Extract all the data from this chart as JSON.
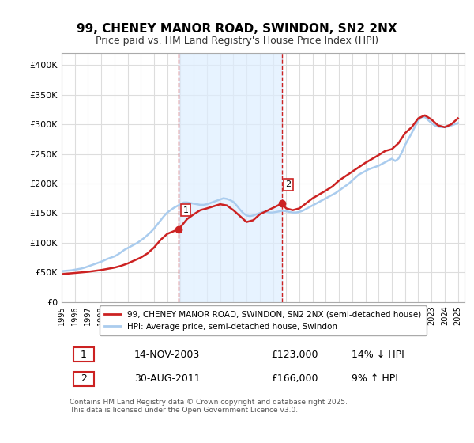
{
  "title": "99, CHENEY MANOR ROAD, SWINDON, SN2 2NX",
  "subtitle": "Price paid vs. HM Land Registry's House Price Index (HPI)",
  "ylabel_ticks": [
    "£0",
    "£50K",
    "£100K",
    "£150K",
    "£200K",
    "£250K",
    "£300K",
    "£350K",
    "£400K"
  ],
  "ytick_values": [
    0,
    50000,
    100000,
    150000,
    200000,
    250000,
    300000,
    350000,
    400000
  ],
  "ylim": [
    0,
    420000
  ],
  "xlim_start": 1995.0,
  "xlim_end": 2025.5,
  "background_color": "#ffffff",
  "plot_bg_color": "#ffffff",
  "grid_color": "#dddddd",
  "hpi_color": "#aaccee",
  "price_color": "#cc2222",
  "vline_color": "#cc2222",
  "shade_color": "#ddeeff",
  "sale1_x": 2003.87,
  "sale1_y": 123000,
  "sale2_x": 2011.66,
  "sale2_y": 166000,
  "legend_label1": "99, CHENEY MANOR ROAD, SWINDON, SN2 2NX (semi-detached house)",
  "legend_label2": "HPI: Average price, semi-detached house, Swindon",
  "annotation1_label": "1",
  "annotation2_label": "2",
  "table_row1": [
    "1",
    "14-NOV-2003",
    "£123,000",
    "14% ↓ HPI"
  ],
  "table_row2": [
    "2",
    "30-AUG-2011",
    "£166,000",
    "9% ↑ HPI"
  ],
  "footer": "Contains HM Land Registry data © Crown copyright and database right 2025.\nThis data is licensed under the Open Government Licence v3.0.",
  "hpi_data_x": [
    1995.0,
    1995.25,
    1995.5,
    1995.75,
    1996.0,
    1996.25,
    1996.5,
    1996.75,
    1997.0,
    1997.25,
    1997.5,
    1997.75,
    1998.0,
    1998.25,
    1998.5,
    1998.75,
    1999.0,
    1999.25,
    1999.5,
    1999.75,
    2000.0,
    2000.25,
    2000.5,
    2000.75,
    2001.0,
    2001.25,
    2001.5,
    2001.75,
    2002.0,
    2002.25,
    2002.5,
    2002.75,
    2003.0,
    2003.25,
    2003.5,
    2003.75,
    2004.0,
    2004.25,
    2004.5,
    2004.75,
    2005.0,
    2005.25,
    2005.5,
    2005.75,
    2006.0,
    2006.25,
    2006.5,
    2006.75,
    2007.0,
    2007.25,
    2007.5,
    2007.75,
    2008.0,
    2008.25,
    2008.5,
    2008.75,
    2009.0,
    2009.25,
    2009.5,
    2009.75,
    2010.0,
    2010.25,
    2010.5,
    2010.75,
    2011.0,
    2011.25,
    2011.5,
    2011.75,
    2012.0,
    2012.25,
    2012.5,
    2012.75,
    2013.0,
    2013.25,
    2013.5,
    2013.75,
    2014.0,
    2014.25,
    2014.5,
    2014.75,
    2015.0,
    2015.25,
    2015.5,
    2015.75,
    2016.0,
    2016.25,
    2016.5,
    2016.75,
    2017.0,
    2017.25,
    2017.5,
    2017.75,
    2018.0,
    2018.25,
    2018.5,
    2018.75,
    2019.0,
    2019.25,
    2019.5,
    2019.75,
    2020.0,
    2020.25,
    2020.5,
    2020.75,
    2021.0,
    2021.25,
    2021.5,
    2021.75,
    2022.0,
    2022.25,
    2022.5,
    2022.75,
    2023.0,
    2023.25,
    2023.5,
    2023.75,
    2024.0,
    2024.25,
    2024.5,
    2024.75,
    2025.0
  ],
  "hpi_data_y": [
    52000,
    52500,
    53000,
    53500,
    54500,
    55500,
    56500,
    58000,
    60000,
    62000,
    64000,
    66000,
    68000,
    70500,
    73000,
    75000,
    77000,
    80000,
    84000,
    88000,
    91000,
    94000,
    97000,
    100000,
    104000,
    108000,
    113000,
    118000,
    124000,
    131000,
    138000,
    145000,
    151000,
    155000,
    159000,
    162000,
    165000,
    168000,
    168000,
    167000,
    166000,
    165000,
    164000,
    164000,
    165000,
    167000,
    169000,
    171000,
    173000,
    175000,
    174000,
    172000,
    169000,
    163000,
    156000,
    150000,
    146000,
    145000,
    146000,
    148000,
    150000,
    152000,
    152000,
    151000,
    151000,
    152000,
    153000,
    154000,
    153000,
    152000,
    151000,
    151000,
    152000,
    154000,
    157000,
    160000,
    163000,
    166000,
    169000,
    172000,
    175000,
    178000,
    181000,
    184000,
    188000,
    192000,
    196000,
    200000,
    205000,
    210000,
    215000,
    218000,
    221000,
    224000,
    226000,
    228000,
    230000,
    233000,
    236000,
    239000,
    242000,
    238000,
    242000,
    252000,
    265000,
    275000,
    285000,
    296000,
    306000,
    312000,
    312000,
    307000,
    302000,
    298000,
    296000,
    295000,
    295000,
    296000,
    298000,
    300000,
    302000
  ],
  "price_data_x": [
    1995.0,
    1995.5,
    1996.0,
    1997.0,
    1998.0,
    1999.0,
    1999.5,
    2000.0,
    2001.0,
    2001.5,
    2002.0,
    2002.5,
    2003.0,
    2003.87,
    2004.5,
    2005.0,
    2005.5,
    2006.0,
    2007.0,
    2007.5,
    2008.0,
    2009.0,
    2009.5,
    2010.0,
    2011.66,
    2012.0,
    2012.5,
    2013.0,
    2014.0,
    2015.0,
    2015.5,
    2016.0,
    2017.0,
    2018.0,
    2019.0,
    2019.5,
    2020.0,
    2020.5,
    2021.0,
    2021.5,
    2022.0,
    2022.5,
    2023.0,
    2023.5,
    2024.0,
    2024.5,
    2025.0
  ],
  "price_data_y": [
    47000,
    48000,
    49000,
    51000,
    54000,
    58000,
    61000,
    65000,
    75000,
    82000,
    92000,
    105000,
    115000,
    123000,
    140000,
    148000,
    155000,
    158000,
    165000,
    163000,
    155000,
    135000,
    138000,
    148000,
    166000,
    158000,
    155000,
    158000,
    175000,
    188000,
    195000,
    205000,
    220000,
    235000,
    248000,
    255000,
    258000,
    268000,
    285000,
    295000,
    310000,
    315000,
    308000,
    298000,
    295000,
    300000,
    310000
  ]
}
